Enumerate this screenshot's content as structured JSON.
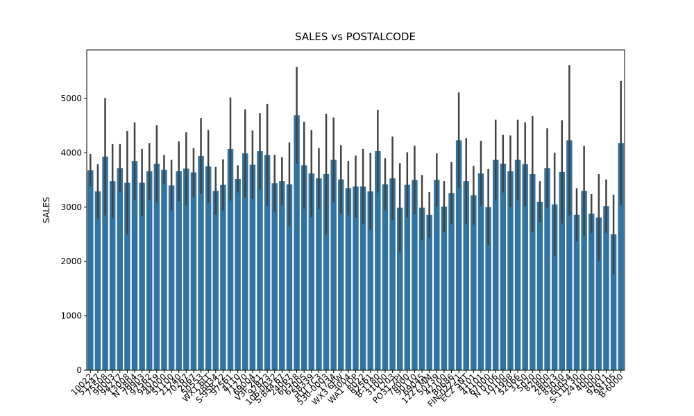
{
  "chart_data": {
    "type": "bar",
    "title": "SALES vs POSTALCODE",
    "y_label": "SALES",
    "categories": [
      "10022",
      "51247",
      "75508",
      "90003",
      "94217",
      "13008",
      "N 5804",
      "79903",
      "97562",
      "94019",
      "44000",
      "51100",
      "21240",
      "70267",
      "2067",
      "50553",
      "WX1 6LT",
      "28034",
      "S-958 22",
      "97561",
      "4110",
      "71270",
      "69004",
      "V3F 2K1",
      "97823",
      "106-0032",
      "S-844 67",
      "24067",
      "60528",
      "62005",
      "58339",
      "H1J 1C3",
      "530-0003",
      "1734",
      "WX3 6FW",
      "3004",
      "WA1 1DP",
      "8022",
      "92561",
      "B-1180",
      "31000",
      "1203",
      "PO31 7PJ",
      "78000",
      "90110",
      "69045",
      "1227 MM",
      "50739",
      "42100",
      "80686",
      "FIN-02271",
      "EC2 5NT",
      "4101",
      "41101",
      "67000",
      "N 0106",
      "10100",
      "71998",
      "52066",
      "3150",
      "5020",
      "8200",
      "2800",
      "28023",
      "83030",
      "60054",
      "S-110 30",
      "24100",
      "4000",
      "3000",
      "92611",
      "94105",
      "B-6000"
    ],
    "values": [
      3680,
      3290,
      3930,
      3480,
      3720,
      3450,
      3850,
      3450,
      3660,
      3800,
      3690,
      3400,
      3660,
      3710,
      3640,
      3940,
      3750,
      3300,
      3410,
      4070,
      3520,
      3990,
      3780,
      4030,
      3960,
      3440,
      3480,
      3420,
      4690,
      3770,
      3620,
      3530,
      3610,
      3870,
      3510,
      3350,
      3380,
      3380,
      3290,
      4030,
      3420,
      3530,
      2990,
      3410,
      3500,
      2990,
      2860,
      3500,
      3010,
      3260,
      4230,
      3480,
      3220,
      3620,
      3000,
      3870,
      3800,
      3660,
      3870,
      3790,
      3610,
      3100,
      3720,
      3050,
      3650,
      4230,
      2860,
      3300,
      2880,
      2810,
      3020,
      2500,
      4180
    ],
    "errors": [
      300,
      500,
      1080,
      680,
      440,
      950,
      710,
      620,
      520,
      710,
      270,
      470,
      550,
      670,
      450,
      700,
      670,
      440,
      470,
      950,
      250,
      810,
      630,
      700,
      940,
      520,
      440,
      770,
      890,
      800,
      800,
      560,
      1110,
      780,
      630,
      500,
      570,
      690,
      710,
      760,
      480,
      770,
      820,
      600,
      630,
      600,
      420,
      490,
      470,
      570,
      880,
      790,
      540,
      600,
      700,
      740,
      530,
      660,
      740,
      770,
      1070,
      380,
      730,
      950,
      950,
      1380,
      490,
      830,
      360,
      800,
      490,
      730,
      1140
    ],
    "color": "#3274a1",
    "error_color": "#424242",
    "ylim": [
      0,
      5893
    ],
    "yticks": [
      0,
      1000,
      2000,
      3000,
      4000,
      5000
    ],
    "grid": false
  }
}
